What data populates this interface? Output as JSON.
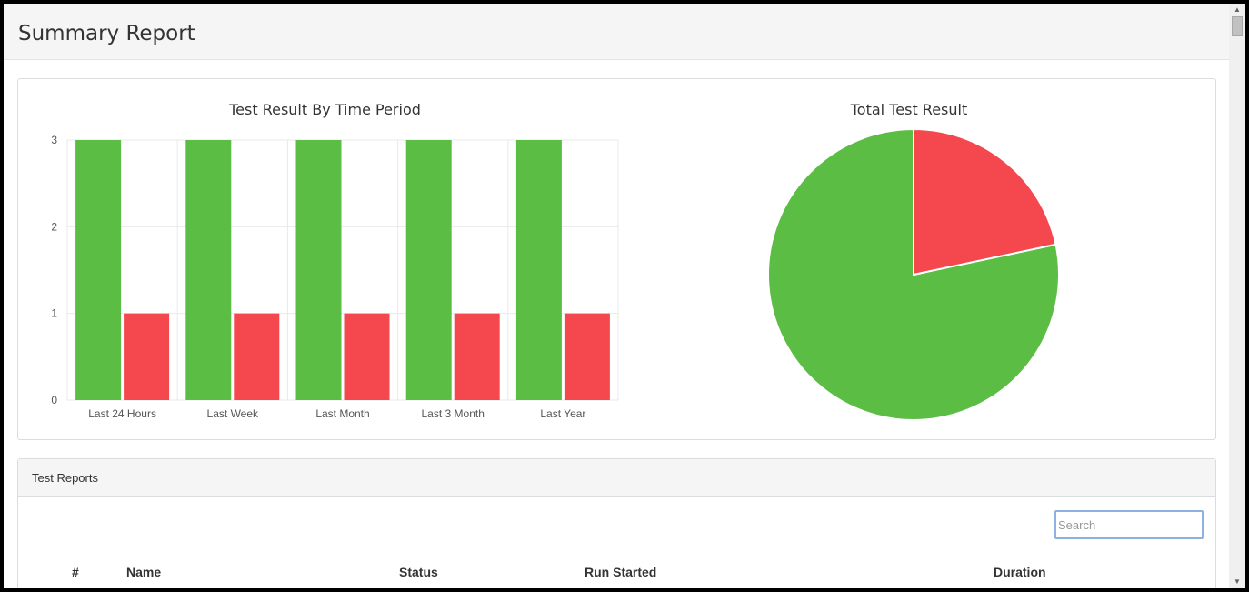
{
  "header": {
    "title": "Summary Report"
  },
  "colors": {
    "pass": "#5cbd45",
    "fail": "#f5474e",
    "grid": "#e9e9e9",
    "axis_text": "#555555"
  },
  "charts": {
    "bar_title": "Test Result By Time Period",
    "pie_title": "Total Test Result"
  },
  "chart_data": [
    {
      "type": "bar",
      "title": "Test Result By Time Period",
      "categories": [
        "Last 24 Hours",
        "Last Week",
        "Last Month",
        "Last 3 Month",
        "Last Year"
      ],
      "series": [
        {
          "values": [
            3,
            3,
            3,
            3,
            3
          ],
          "color": "#5cbd45"
        },
        {
          "values": [
            1,
            1,
            1,
            1,
            1
          ],
          "color": "#f5474e"
        }
      ],
      "ylim": [
        0,
        3
      ],
      "yticks": [
        0,
        1,
        2,
        3
      ],
      "grid": true,
      "legend": "none"
    },
    {
      "type": "pie",
      "title": "Total Test Result",
      "slices": [
        {
          "value": 3,
          "color": "#5cbd45"
        },
        {
          "value": 0.83,
          "color": "#f5474e"
        }
      ]
    }
  ],
  "reports": {
    "heading": "Test Reports",
    "search_placeholder": "Search",
    "columns": [
      "#",
      "Name",
      "Status",
      "Run Started",
      "Duration"
    ]
  },
  "scrollbar": {
    "up_icon": "triangle-up",
    "down_icon": "triangle-down"
  }
}
